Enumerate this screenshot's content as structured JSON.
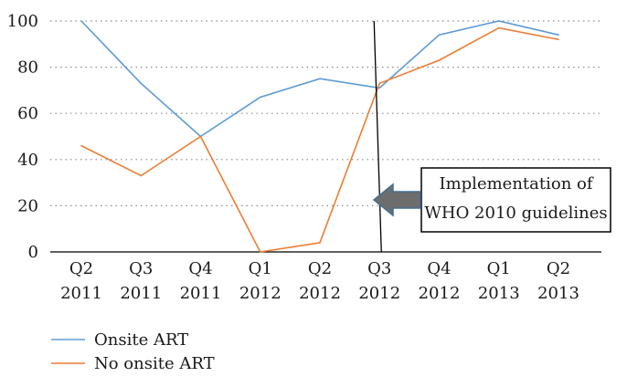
{
  "chart_data": {
    "type": "line",
    "title": "",
    "xlabel": "",
    "ylabel": "",
    "categories": [
      [
        "Q2",
        "2011"
      ],
      [
        "Q3",
        "2011"
      ],
      [
        "Q4",
        "2011"
      ],
      [
        "Q1",
        "2012"
      ],
      [
        "Q2",
        "2012"
      ],
      [
        "Q3",
        "2012"
      ],
      [
        "Q4",
        "2012"
      ],
      [
        "Q1",
        "2013"
      ],
      [
        "Q2",
        "2013"
      ]
    ],
    "ylim": [
      0,
      100
    ],
    "yticks": [
      "0",
      "20",
      "40",
      "60",
      "80",
      "100"
    ],
    "grid": "horizontal-dotted",
    "legend_position": "bottom-left",
    "series": [
      {
        "name": "Onsite ART",
        "color": "#5b9bd5",
        "values": [
          100,
          73,
          50,
          67,
          75,
          71,
          94,
          100,
          94
        ]
      },
      {
        "name": "No onsite ART",
        "color": "#ed7d31",
        "values": [
          46,
          33,
          50,
          0,
          4,
          73,
          83,
          97,
          92
        ]
      }
    ],
    "annotation": {
      "lines": [
        "Implementation of",
        "WHO 2010 guidelines"
      ],
      "marker_category_index": 5,
      "arrow_color": "#6d6d6d",
      "arrow_outline": "#3f6f96"
    }
  }
}
